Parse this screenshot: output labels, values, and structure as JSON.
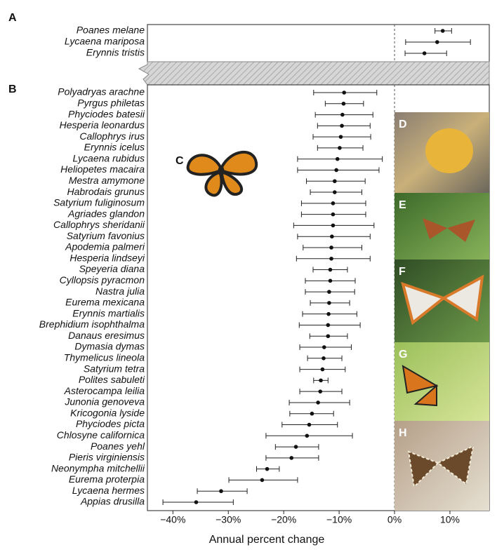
{
  "chart_data": {
    "type": "forest",
    "xlabel": "Annual percent change",
    "xlim": [
      -44.6,
      17.1
    ],
    "xticks": [
      {
        "value": -40,
        "label": "−40%"
      },
      {
        "value": -30,
        "label": "−30%"
      },
      {
        "value": -20,
        "label": "−20%"
      },
      {
        "value": -10,
        "label": "−10%"
      },
      {
        "value": 0,
        "label": "0%"
      },
      {
        "value": 10,
        "label": "10%"
      }
    ],
    "panels": [
      {
        "label": "A",
        "species": [
          "Poanes melane",
          "Lycaena mariposa",
          "Erynnis tristis"
        ],
        "values": [
          8.7,
          7.7,
          5.4
        ],
        "lower": [
          7.3,
          2.0,
          1.9
        ],
        "upper": [
          10.3,
          13.7,
          9.4
        ]
      },
      {
        "label": "B",
        "species": [
          "Polyadryas arachne",
          "Pyrgus philetas",
          "Phyciodes batesii",
          "Hesperia leonardus",
          "Callophrys irus",
          "Erynnis icelus",
          "Lycaena rubidus",
          "Heliopetes macaira",
          "Mestra amymone",
          "Habrodais grunus",
          "Satyrium fuliginosum",
          "Agriades glandon",
          "Callophrys sheridanii",
          "Satyrium favonius",
          "Apodemia palmeri",
          "Hesperia lindseyi",
          "Speyeria diana",
          "Cyllopsis pyracmon",
          "Nastra julia",
          "Eurema mexicana",
          "Erynnis martialis",
          "Brephidium isophthalma",
          "Danaus eresimus",
          "Dymasia dymas",
          "Thymelicus lineola",
          "Satyrium tetra",
          "Polites sabuleti",
          "Asterocampa leilia",
          "Junonia genoveva",
          "Kricogonia lyside",
          "Phyciodes picta",
          "Chlosyne californica",
          "Poanes yehl",
          "Pieris virginiensis",
          "Neonympha mitchellii",
          "Eurema proterpia",
          "Lycaena hermes",
          "Appias drusilla"
        ],
        "values": [
          -9.1,
          -9.2,
          -9.4,
          -9.5,
          -9.7,
          -9.9,
          -10.3,
          -10.5,
          -10.8,
          -10.8,
          -11.1,
          -11.1,
          -11.1,
          -11.3,
          -11.4,
          -11.4,
          -11.6,
          -11.6,
          -11.8,
          -11.8,
          -11.9,
          -12.0,
          -12.0,
          -12.7,
          -12.8,
          -13.0,
          -13.3,
          -13.4,
          -13.8,
          -14.9,
          -15.4,
          -15.8,
          -17.8,
          -18.6,
          -23.0,
          -23.9,
          -31.3,
          -35.8
        ],
        "lower": [
          -14.6,
          -12.5,
          -14.3,
          -13.9,
          -14.7,
          -13.9,
          -17.5,
          -17.5,
          -15.9,
          -15.2,
          -16.8,
          -16.8,
          -18.2,
          -17.5,
          -16.5,
          -17.7,
          -14.7,
          -16.1,
          -16.1,
          -15.2,
          -16.6,
          -17.2,
          -15.3,
          -17.1,
          -15.7,
          -17.1,
          -14.6,
          -17.1,
          -19.0,
          -18.9,
          -20.3,
          -23.2,
          -21.5,
          -23.2,
          -24.9,
          -29.9,
          -35.6,
          -41.8
        ],
        "upper": [
          -3.2,
          -5.6,
          -3.9,
          -4.4,
          -4.3,
          -5.7,
          -2.2,
          -2.8,
          -5.3,
          -5.9,
          -5.2,
          -5.2,
          -3.7,
          -4.4,
          -5.9,
          -4.4,
          -8.5,
          -7.1,
          -7.2,
          -8.1,
          -6.8,
          -6.2,
          -8.5,
          -7.8,
          -9.5,
          -8.9,
          -12.0,
          -9.5,
          -8.1,
          -11.0,
          -10.3,
          -7.6,
          -13.7,
          -13.7,
          -20.8,
          -17.5,
          -26.6,
          -29.1
        ]
      }
    ],
    "photos": [
      "C",
      "D",
      "E",
      "F",
      "G",
      "H"
    ]
  }
}
